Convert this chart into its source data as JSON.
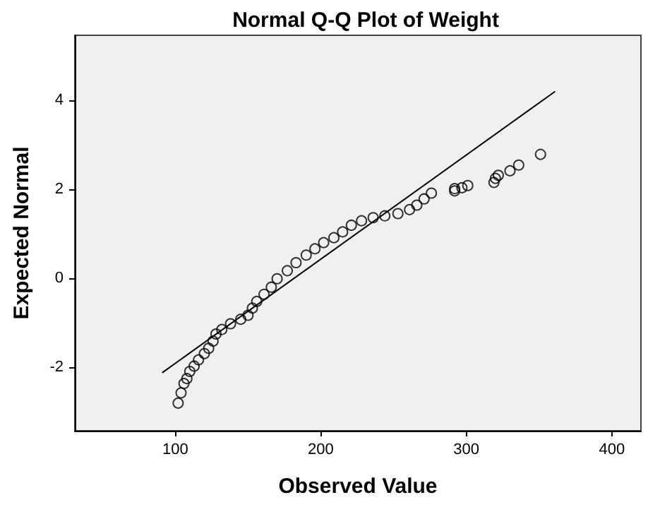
{
  "chart_data": {
    "type": "scatter",
    "title": "Normal Q-Q Plot of Weight",
    "xlabel": "Observed Value",
    "ylabel": "Expected Normal",
    "xlim": [
      31,
      420
    ],
    "xticks": [
      100,
      200,
      300,
      400
    ],
    "ylim": [
      -3.42,
      5.45
    ],
    "yticks": [
      -2,
      0,
      2,
      4
    ],
    "grid": false,
    "marker": "circle",
    "series": [
      {
        "type": "scatter",
        "color": "#000000",
        "x": [
          102,
          104,
          106,
          108,
          110,
          113,
          116,
          120,
          123,
          126,
          128,
          132,
          138,
          145,
          150,
          153,
          156,
          161,
          166,
          170,
          177,
          183,
          190,
          196,
          202,
          209,
          215,
          221,
          228,
          236,
          244,
          253,
          261,
          266,
          271,
          276,
          292,
          292,
          297,
          301,
          319,
          320,
          322,
          330,
          336,
          351
        ],
        "values": [
          -2.8,
          -2.57,
          -2.36,
          -2.25,
          -2.09,
          -1.97,
          -1.83,
          -1.69,
          -1.57,
          -1.41,
          -1.25,
          -1.15,
          -1.02,
          -0.92,
          -0.83,
          -0.67,
          -0.52,
          -0.36,
          -0.2,
          -0.01,
          0.17,
          0.35,
          0.52,
          0.66,
          0.8,
          0.91,
          1.04,
          1.19,
          1.29,
          1.36,
          1.4,
          1.45,
          1.54,
          1.64,
          1.78,
          1.91,
          1.96,
          2.01,
          2.03,
          2.08,
          2.15,
          2.24,
          2.31,
          2.41,
          2.54,
          2.78
        ]
      },
      {
        "type": "line",
        "color": "#000000",
        "marker": "none",
        "line_style": "solid",
        "x": [
          91,
          361
        ],
        "values": [
          -2.12,
          4.19
        ]
      }
    ]
  }
}
